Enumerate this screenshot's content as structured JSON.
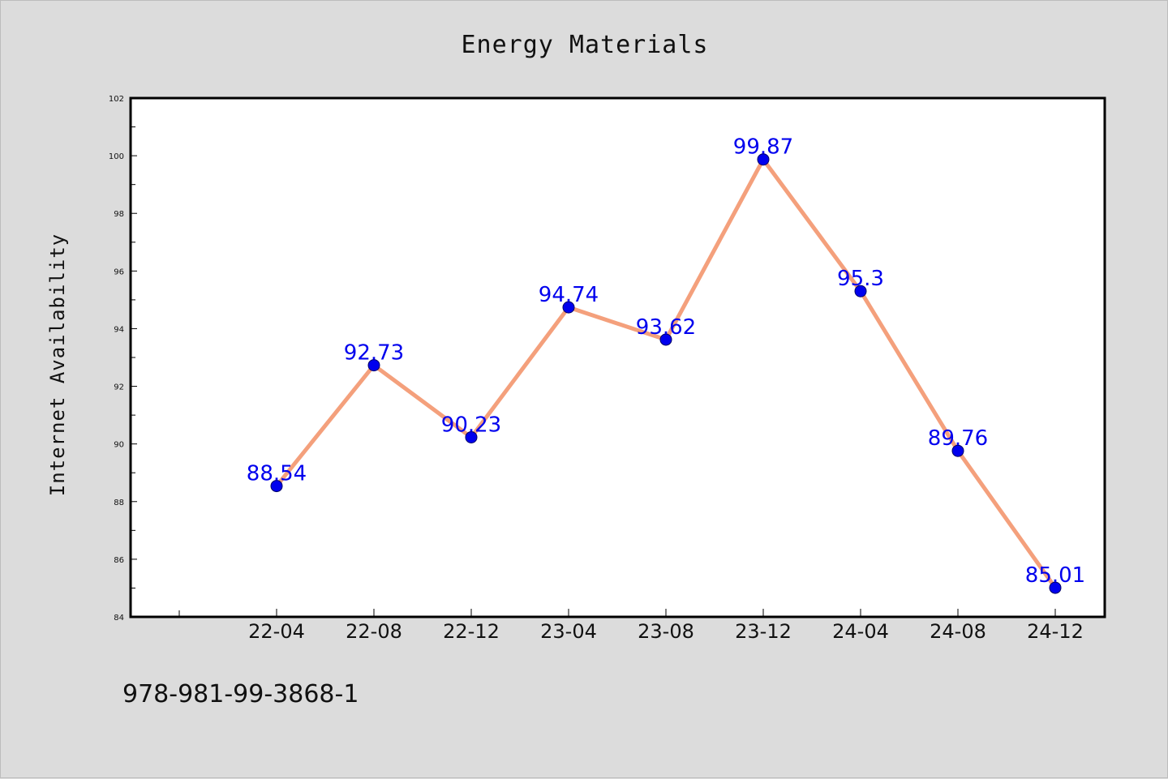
{
  "footer": {
    "isbn": "978-981-99-3868-1"
  },
  "chart_data": {
    "type": "line",
    "title": "Energy Materials",
    "xlabel": "",
    "ylabel": "Internet Availability",
    "categories": [
      "22-04",
      "22-08",
      "22-12",
      "23-04",
      "23-08",
      "23-12",
      "24-04",
      "24-08",
      "24-12"
    ],
    "series": [
      {
        "values": [
          88.54,
          92.73,
          90.23,
          94.74,
          93.62,
          99.87,
          95.3,
          89.76,
          85.01
        ],
        "labels": [
          "88.54",
          "92.73",
          "90.23",
          "94.74",
          "93.62",
          "99.87",
          "95.3",
          "89.76",
          "85.01"
        ],
        "line_color": "#f4a07c",
        "marker_color": "#0000ee"
      }
    ],
    "ylim": [
      84,
      102
    ],
    "yticks": [
      "84",
      "86",
      "88",
      "90",
      "92",
      "94",
      "96",
      "98",
      "100",
      "102"
    ],
    "grid": false,
    "legend": "none",
    "colors": {
      "background": "#dcdcdc",
      "plot_background": "#ffffff",
      "axes": "#000000",
      "label": "#0000ee"
    }
  }
}
